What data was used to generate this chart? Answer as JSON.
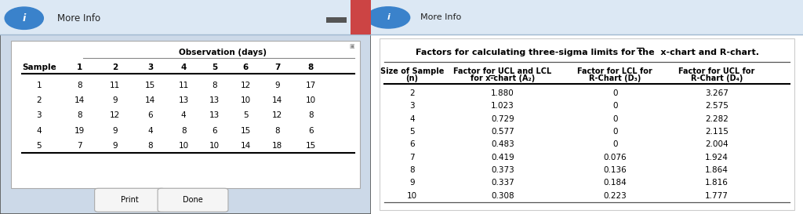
{
  "left_panel": {
    "title": "More Info",
    "obs_header": "Observation (days)",
    "col_headers": [
      "Sample",
      "1",
      "2",
      "3",
      "4",
      "5",
      "6",
      "7",
      "8"
    ],
    "rows": [
      [
        1,
        8,
        11,
        15,
        11,
        8,
        12,
        9,
        17
      ],
      [
        2,
        14,
        9,
        14,
        13,
        13,
        10,
        14,
        10
      ],
      [
        3,
        8,
        12,
        6,
        4,
        13,
        5,
        12,
        8
      ],
      [
        4,
        19,
        9,
        4,
        8,
        6,
        15,
        8,
        6
      ],
      [
        5,
        7,
        9,
        8,
        10,
        10,
        14,
        18,
        15
      ]
    ]
  },
  "right_panel": {
    "col_headers_line1": [
      "Size of Sample",
      "Factor for UCL and LCL",
      "Factor for LCL for",
      "Factor for UCL for"
    ],
    "col_headers_line2": [
      "(n)",
      "for x-chart (A₂)",
      "R-Chart (D₃)",
      "R-Chart (D₄)"
    ],
    "rows": [
      [
        "2",
        "1.880",
        "0",
        "3.267"
      ],
      [
        "3",
        "1.023",
        "0",
        "2.575"
      ],
      [
        "4",
        "0.729",
        "0",
        "2.282"
      ],
      [
        "5",
        "0.577",
        "0",
        "2.115"
      ],
      [
        "6",
        "0.483",
        "0",
        "2.004"
      ],
      [
        "7",
        "0.419",
        "0.076",
        "1.924"
      ],
      [
        "8",
        "0.373",
        "0.136",
        "1.864"
      ],
      [
        "9",
        "0.337",
        "0.184",
        "1.816"
      ],
      [
        "10",
        "0.308",
        "0.223",
        "1.777"
      ]
    ],
    "top_bg": "#e8f0f8",
    "main_bg": "#ffffff",
    "title_text": "Factors for calculating three-sigma limits for the x-chart and R-chart."
  },
  "fig_bg": "#e8eef5",
  "left_bg": "#dce8f4",
  "left_inner_bg": "#f0f5fa"
}
